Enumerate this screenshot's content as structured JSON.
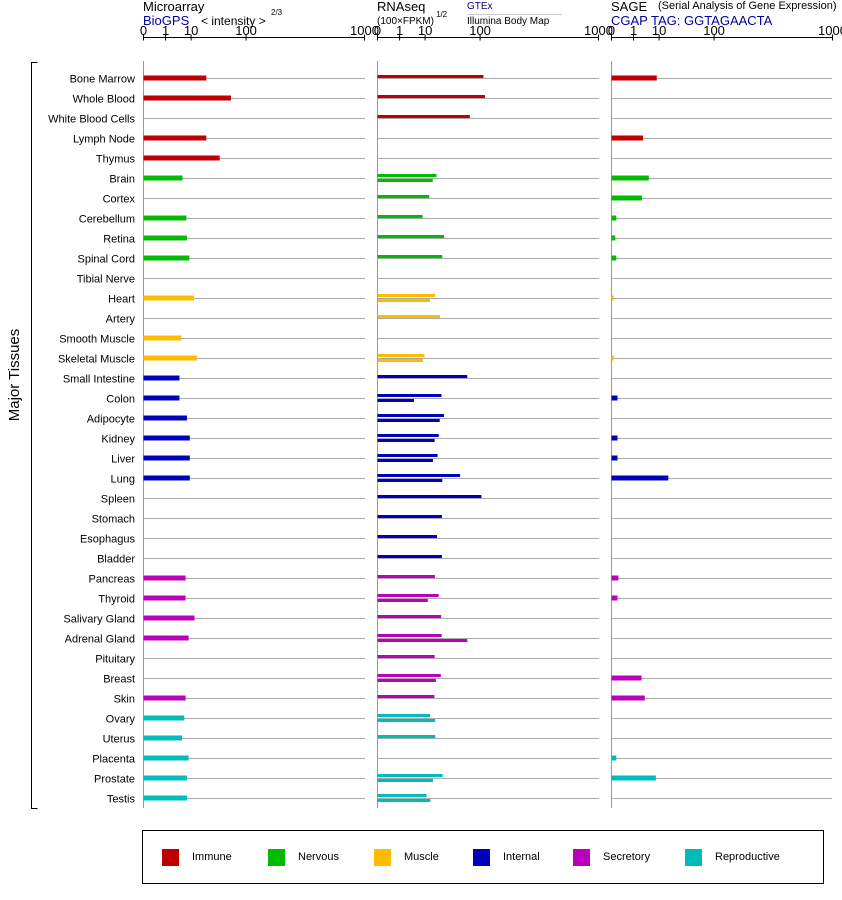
{
  "headers": {
    "microarray": {
      "title": "Microarray",
      "source": "BioGPS",
      "unit": "< intensity >",
      "unit_exp": "2/3"
    },
    "rnaseq": {
      "title": "RNAseq",
      "unit": "(100×FPKM)",
      "unit_exp": "1/2",
      "source1": "GTEx",
      "source2": "Illumina Body Map"
    },
    "sage": {
      "title": "SAGE",
      "subtitle": "(Serial Analysis of Gene Expression)",
      "tag": "CGAP TAG: GGTAGAACTA"
    }
  },
  "y_axis_label": "Major Tissues",
  "chart_data": {
    "type": "bar",
    "orientation": "horizontal",
    "x_scale": "power",
    "axes": [
      {
        "panel": "microarray",
        "ticks": [
          "0",
          "1",
          "10",
          "100",
          "1000"
        ],
        "xlim": [
          0,
          1000
        ]
      },
      {
        "panel": "rnaseq",
        "ticks": [
          "0",
          "1",
          "10",
          "100",
          "1000"
        ],
        "xlim": [
          0,
          1000
        ]
      },
      {
        "panel": "sage",
        "ticks": [
          "0",
          "1",
          "10",
          "100",
          "1000"
        ],
        "xlim": [
          0,
          1000
        ]
      }
    ],
    "categories": [
      "Bone Marrow",
      "Whole Blood",
      "White Blood Cells",
      "Lymph Node",
      "Thymus",
      "Brain",
      "Cortex",
      "Cerebellum",
      "Retina",
      "Spinal Cord",
      "Tibial Nerve",
      "Heart",
      "Artery",
      "Smooth Muscle",
      "Skeletal Muscle",
      "Small Intestine",
      "Colon",
      "Adipocyte",
      "Kidney",
      "Liver",
      "Lung",
      "Spleen",
      "Stomach",
      "Esophagus",
      "Bladder",
      "Pancreas",
      "Thyroid",
      "Salivary Gland",
      "Adrenal Gland",
      "Pituitary",
      "Breast",
      "Skin",
      "Ovary",
      "Uterus",
      "Placenta",
      "Prostate",
      "Testis"
    ],
    "groups": [
      "Immune",
      "Immune",
      "Immune",
      "Immune",
      "Immune",
      "Nervous",
      "Nervous",
      "Nervous",
      "Nervous",
      "Nervous",
      "Nervous",
      "Muscle",
      "Muscle",
      "Muscle",
      "Muscle",
      "Internal",
      "Internal",
      "Internal",
      "Internal",
      "Internal",
      "Internal",
      "Internal",
      "Internal",
      "Internal",
      "Internal",
      "Secretory",
      "Secretory",
      "Secretory",
      "Secretory",
      "Secretory",
      "Secretory",
      "Secretory",
      "Reproductive",
      "Reproductive",
      "Reproductive",
      "Reproductive",
      "Reproductive"
    ],
    "series": [
      {
        "name": "Microarray",
        "values": [
          23,
          62,
          null,
          23,
          41,
          5.5,
          null,
          7.3,
          7.6,
          8.9,
          null,
          12,
          null,
          5,
          14,
          4.3,
          4.3,
          7.6,
          9.2,
          9.2,
          9.2,
          null,
          null,
          null,
          null,
          6.9,
          6.9,
          12.3,
          8.5,
          null,
          null,
          6.9,
          6.3,
          5.3,
          8.5,
          7.6,
          7.6
        ]
      },
      {
        "name": "GTEx",
        "values": [
          null,
          null,
          null,
          null,
          null,
          19,
          12.8,
          8.5,
          27.4,
          25.2,
          null,
          17.7,
          22.7,
          null,
          9.6,
          null,
          24.3,
          27.2,
          21.3,
          20.1,
          52.2,
          null,
          24.8,
          19.5,
          24.8,
          17.5,
          21.2,
          23.9,
          24.5,
          17.3,
          23.5,
          17.1,
          13.5,
          17.9,
          null,
          25.6,
          10.9
        ]
      },
      {
        "name": "Illumina Body Map",
        "values": [
          110,
          115,
          73,
          null,
          null,
          15.6,
          null,
          null,
          null,
          null,
          null,
          13.4,
          null,
          null,
          8.7,
          67,
          4.5,
          22.3,
          17.3,
          15.8,
          25.2,
          104,
          null,
          null,
          null,
          null,
          11.8,
          null,
          67,
          null,
          18.4,
          null,
          17.7,
          null,
          null,
          15.8,
          13.7
        ]
      },
      {
        "name": "SAGE",
        "values": [
          8.6,
          null,
          null,
          2.9,
          null,
          4.8,
          2.6,
          0.01,
          0.005,
          0.01,
          null,
          0.001,
          null,
          null,
          0.001,
          null,
          0.02,
          null,
          0.02,
          0.02,
          17,
          null,
          null,
          null,
          null,
          0.03,
          0.02,
          null,
          null,
          null,
          2.5,
          3.4,
          null,
          null,
          0.01,
          8.1,
          null
        ]
      }
    ]
  },
  "colors": {
    "Immune": "#c00000",
    "Nervous": "#00bb00",
    "Muscle": "#ffbb00",
    "Internal": "#0000bb",
    "Secretory": "#bb00bb",
    "Reproductive": "#00bbbb"
  },
  "legend": [
    {
      "label": "Immune",
      "color": "#c00000"
    },
    {
      "label": "Nervous",
      "color": "#00bb00"
    },
    {
      "label": "Muscle",
      "color": "#ffbb00"
    },
    {
      "label": "Internal",
      "color": "#0000bb"
    },
    {
      "label": "Secretory",
      "color": "#bb00bb"
    },
    {
      "label": "Reproductive",
      "color": "#00bbbb"
    }
  ]
}
